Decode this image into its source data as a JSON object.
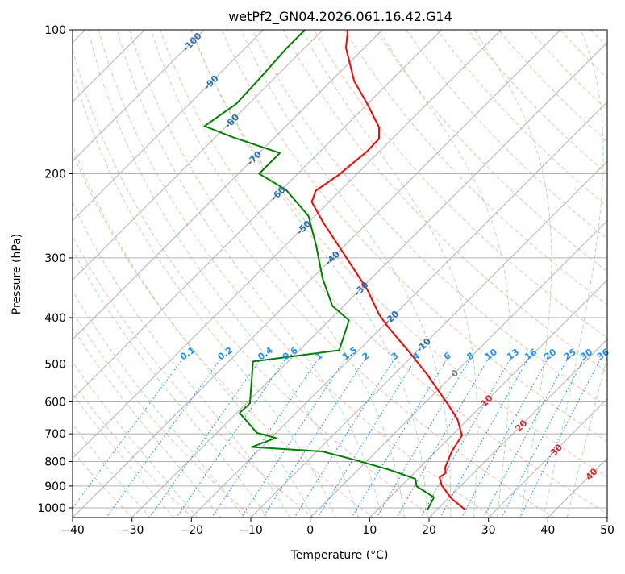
{
  "chart_data": {
    "type": "line",
    "subtype": "skew-t log-p",
    "title": "wetPf2_GN04.2026.061.16.42.G14",
    "xlabel": "Temperature (°C)",
    "ylabel": "Pressure (hPa)",
    "xlim": [
      -40,
      50
    ],
    "ylim": [
      1050,
      100
    ],
    "x_ticks": [
      "−40",
      "−30",
      "−20",
      "−10",
      "0",
      "10",
      "20",
      "30",
      "40",
      "50"
    ],
    "x_tick_values": [
      -40,
      -30,
      -20,
      -10,
      0,
      10,
      20,
      30,
      40,
      50
    ],
    "y_ticks": [
      "100",
      "200",
      "300",
      "400",
      "500",
      "600",
      "700",
      "800",
      "900",
      "1000"
    ],
    "y_tick_values": [
      100,
      200,
      300,
      400,
      500,
      600,
      700,
      800,
      900,
      1000
    ],
    "grid": true,
    "series": [
      {
        "name": "Temperature",
        "color": "#ff0000",
        "points": [
          [
            1008,
            24.7
          ],
          [
            955,
            20.5
          ],
          [
            897,
            16.7
          ],
          [
            863,
            15.0
          ],
          [
            845,
            15.3
          ],
          [
            824,
            14.3
          ],
          [
            762,
            12.7
          ],
          [
            705,
            11.7
          ],
          [
            652,
            8.2
          ],
          [
            604,
            3.8
          ],
          [
            527,
            -4.3
          ],
          [
            478,
            -10.4
          ],
          [
            417,
            -19.2
          ],
          [
            394,
            -22.6
          ],
          [
            350,
            -28.7
          ],
          [
            300,
            -37.6
          ],
          [
            252,
            -47.7
          ],
          [
            229,
            -52.9
          ],
          [
            217,
            -54.1
          ],
          [
            201,
            -52.9
          ],
          [
            190,
            -52.5
          ],
          [
            180,
            -52.1
          ],
          [
            169,
            -52.2
          ],
          [
            160,
            -54.1
          ],
          [
            143,
            -60.0
          ],
          [
            128,
            -66.1
          ],
          [
            109,
            -73.1
          ],
          [
            100,
            -75.8
          ]
        ]
      },
      {
        "name": "Dewpoint",
        "color": "#008000",
        "points": [
          [
            1008,
            18.4
          ],
          [
            950,
            17.4
          ],
          [
            902,
            12.7
          ],
          [
            870,
            11.2
          ],
          [
            851,
            8.3
          ],
          [
            832,
            5.2
          ],
          [
            793,
            -2.3
          ],
          [
            762,
            -9.1
          ],
          [
            746,
            -21.7
          ],
          [
            714,
            -19.2
          ],
          [
            697,
            -23.2
          ],
          [
            633,
            -29.5
          ],
          [
            604,
            -29.4
          ],
          [
            494,
            -35.9
          ],
          [
            468,
            -23.3
          ],
          [
            405,
            -26.7
          ],
          [
            378,
            -31.9
          ],
          [
            331,
            -38.2
          ],
          [
            284,
            -44.6
          ],
          [
            245,
            -51.1
          ],
          [
            216,
            -59.3
          ],
          [
            200,
            -66.5
          ],
          [
            181,
            -66.5
          ],
          [
            168,
            -76.9
          ],
          [
            159,
            -83.7
          ],
          [
            143,
            -82.1
          ],
          [
            128,
            -82.4
          ],
          [
            109,
            -83.0
          ],
          [
            100,
            -83.0
          ]
        ]
      }
    ],
    "isotherm_labels": [
      "-100",
      "-90",
      "-80",
      "-70",
      "-60",
      "-50",
      "-40",
      "-30",
      "-20",
      "-10",
      "0",
      "10",
      "20",
      "30",
      "40"
    ],
    "isotherm_label_values": [
      -100,
      -90,
      -80,
      -70,
      -60,
      -50,
      -40,
      -30,
      -20,
      -10,
      0,
      10,
      20,
      30,
      40
    ],
    "mixing_ratio_labels": [
      "0.1",
      "0.2",
      "0.4",
      "0.6",
      "1",
      "1.5",
      "2",
      "3",
      "4",
      "6",
      "8",
      "10",
      "13",
      "16",
      "20",
      "25",
      "30",
      "36"
    ],
    "mixing_ratio_values_gkg": [
      0.1,
      0.2,
      0.4,
      0.6,
      1,
      1.5,
      2,
      3,
      4,
      6,
      8,
      10,
      13,
      16,
      20,
      25,
      30,
      36
    ],
    "colors": {
      "isotherm": "#b0b0b0",
      "dry_adiabat": "#f4a58a",
      "moist_adiabat": "#9fd49f",
      "mixing_ratio": "#1e90ff",
      "label_cold": "#2a70b8",
      "label_zero": "#808080",
      "label_warm": "#d62728"
    }
  }
}
